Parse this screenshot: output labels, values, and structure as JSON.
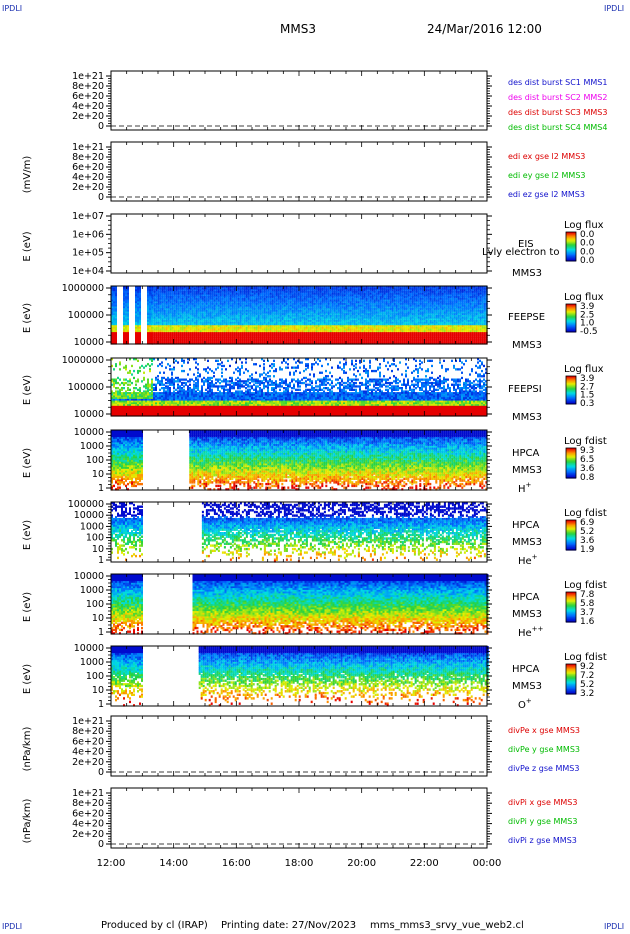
{
  "corners": {
    "tl": "IPDLI",
    "tr": "IPDLI",
    "bl": "IPDLI",
    "br": "IPDLI"
  },
  "header": {
    "spacecraft": "MMS3",
    "datetime": "24/Mar/2016 12:00"
  },
  "footer": {
    "produced_by": "Produced by cl (IRAP)",
    "printing_date": "Printing date: 27/Nov/2023",
    "filename": "mms_mms3_srvy_vue_web2.cl"
  },
  "chart_data": {
    "type": "stacked-timeseries",
    "x_ticks": [
      "12:00",
      "14:00",
      "16:00",
      "18:00",
      "20:00",
      "22:00",
      "00:00"
    ],
    "x_range_hours": [
      12,
      24
    ],
    "panels": [
      {
        "kind": "line",
        "ylabel": "",
        "yticks": [
          "1e+21",
          "8e+20",
          "6e+20",
          "4e+20",
          "2e+20",
          "0"
        ],
        "ylim": [
          0,
          1.1e+21
        ],
        "legend": [
          {
            "label": "des dist burst SC1 MMS1",
            "color": "#1111cc"
          },
          {
            "label": "des dist burst SC2 MMS2",
            "color": "#ee00ee"
          },
          {
            "label": "des dist burst SC3 MMS3",
            "color": "#dd0000"
          },
          {
            "label": "des dist burst SC4 MMS4",
            "color": "#00bb00"
          }
        ]
      },
      {
        "kind": "line",
        "ylabel": "(mV/m)",
        "yticks": [
          "1e+21",
          "8e+20",
          "6e+20",
          "4e+20",
          "2e+20",
          "0"
        ],
        "ylim": [
          0,
          1.1e+21
        ],
        "legend": [
          {
            "label": "edi ex gse l2 MMS3",
            "color": "#dd0000"
          },
          {
            "label": "edi ey gse l2 MMS3",
            "color": "#00bb00"
          },
          {
            "label": "edi ez gse l2 MMS3",
            "color": "#1111cc"
          }
        ]
      },
      {
        "kind": "spectrogram",
        "ylabel": "E (eV)",
        "yticks": [
          "1e+07",
          "1e+06",
          "1e+05",
          "1e+04"
        ],
        "ylog": [
          4,
          7
        ],
        "instrument": [
          "EIS",
          "Lvly electron to",
          "MMS3"
        ],
        "cbar_title": "Log flux",
        "cbar_ticks": [
          "0.0",
          "0.0",
          "0.0",
          "0.0"
        ],
        "coverage": []
      },
      {
        "kind": "spectrogram",
        "ylabel": "E (eV)",
        "yticks": [
          "1000000",
          "100000",
          "10000"
        ],
        "ylog": [
          4,
          6
        ],
        "instrument": [
          "FEEPSE",
          "MMS3"
        ],
        "cbar_title": "Log flux",
        "cbar_ticks": [
          "3.9",
          "2.5",
          "1.0",
          "-0.5"
        ],
        "coverage": [
          [
            12,
            13.3,
            "striped"
          ],
          [
            13.3,
            24,
            "full"
          ]
        ]
      },
      {
        "kind": "spectrogram",
        "ylabel": "E (eV)",
        "yticks": [
          "1000000",
          "100000",
          "10000"
        ],
        "ylog": [
          4,
          6
        ],
        "instrument": [
          "FEEPSI",
          "MMS3"
        ],
        "cbar_title": "Log flux",
        "cbar_ticks": [
          "3.9",
          "2.7",
          "1.5",
          "0.3"
        ],
        "coverage": [
          [
            12,
            24,
            "sparse"
          ]
        ]
      },
      {
        "kind": "spectrogram",
        "ylabel": "E (eV)",
        "yticks": [
          "10000",
          "1000",
          "100",
          "10",
          "1"
        ],
        "ylog": [
          0,
          4.3
        ],
        "instrument": [
          "HPCA",
          "MMS3",
          "H+"
        ],
        "cbar_title": "Log fdist",
        "cbar_ticks": [
          "9.3",
          "6.5",
          "3.6",
          "0.8"
        ],
        "coverage": [
          [
            12,
            13,
            "full"
          ],
          [
            14.5,
            24,
            "full"
          ]
        ]
      },
      {
        "kind": "spectrogram",
        "ylabel": "E (eV)",
        "yticks": [
          "100000",
          "10000",
          "1000",
          "100",
          "10",
          "1"
        ],
        "ylog": [
          0,
          5.3
        ],
        "instrument": [
          "HPCA",
          "MMS3",
          "He+"
        ],
        "cbar_title": "Log fdist",
        "cbar_ticks": [
          "6.9",
          "5.2",
          "3.6",
          "1.9"
        ],
        "coverage": [
          [
            12,
            13,
            "patchy"
          ],
          [
            14.9,
            24,
            "patchy"
          ]
        ]
      },
      {
        "kind": "spectrogram",
        "ylabel": "E (eV)",
        "yticks": [
          "10000",
          "1000",
          "100",
          "10",
          "1"
        ],
        "ylog": [
          0,
          4.3
        ],
        "instrument": [
          "HPCA",
          "MMS3",
          "He++"
        ],
        "cbar_title": "Log fdist",
        "cbar_ticks": [
          "7.8",
          "5.8",
          "3.7",
          "1.6"
        ],
        "coverage": [
          [
            12,
            13,
            "full"
          ],
          [
            14.6,
            24,
            "full"
          ]
        ]
      },
      {
        "kind": "spectrogram",
        "ylabel": "E (eV)",
        "yticks": [
          "10000",
          "1000",
          "100",
          "10",
          "1"
        ],
        "ylog": [
          0,
          4.3
        ],
        "instrument": [
          "HPCA",
          "MMS3",
          "O+"
        ],
        "cbar_title": "Log fdist",
        "cbar_ticks": [
          "9.2",
          "7.2",
          "5.2",
          "3.2"
        ],
        "coverage": [
          [
            12,
            13,
            "patchy"
          ],
          [
            14.8,
            24,
            "patchy"
          ]
        ]
      },
      {
        "kind": "line",
        "ylabel": "(nPa/km)",
        "yticks": [
          "1e+21",
          "8e+20",
          "6e+20",
          "4e+20",
          "2e+20",
          "0"
        ],
        "ylim": [
          0,
          1.1e+21
        ],
        "legend": [
          {
            "label": "divPe x gse MMS3",
            "color": "#dd0000"
          },
          {
            "label": "divPe y gse MMS3",
            "color": "#00bb00"
          },
          {
            "label": "divPe z gse MMS3",
            "color": "#1111cc"
          }
        ]
      },
      {
        "kind": "line",
        "ylabel": "(nPa/km)",
        "yticks": [
          "1e+21",
          "8e+20",
          "6e+20",
          "4e+20",
          "2e+20",
          "0"
        ],
        "ylim": [
          0,
          1.1e+21
        ],
        "legend": [
          {
            "label": "divPi x gse MMS3",
            "color": "#dd0000"
          },
          {
            "label": "divPi y gse MMS3",
            "color": "#00bb00"
          },
          {
            "label": "divPi z gse MMS3",
            "color": "#1111cc"
          }
        ]
      }
    ]
  }
}
